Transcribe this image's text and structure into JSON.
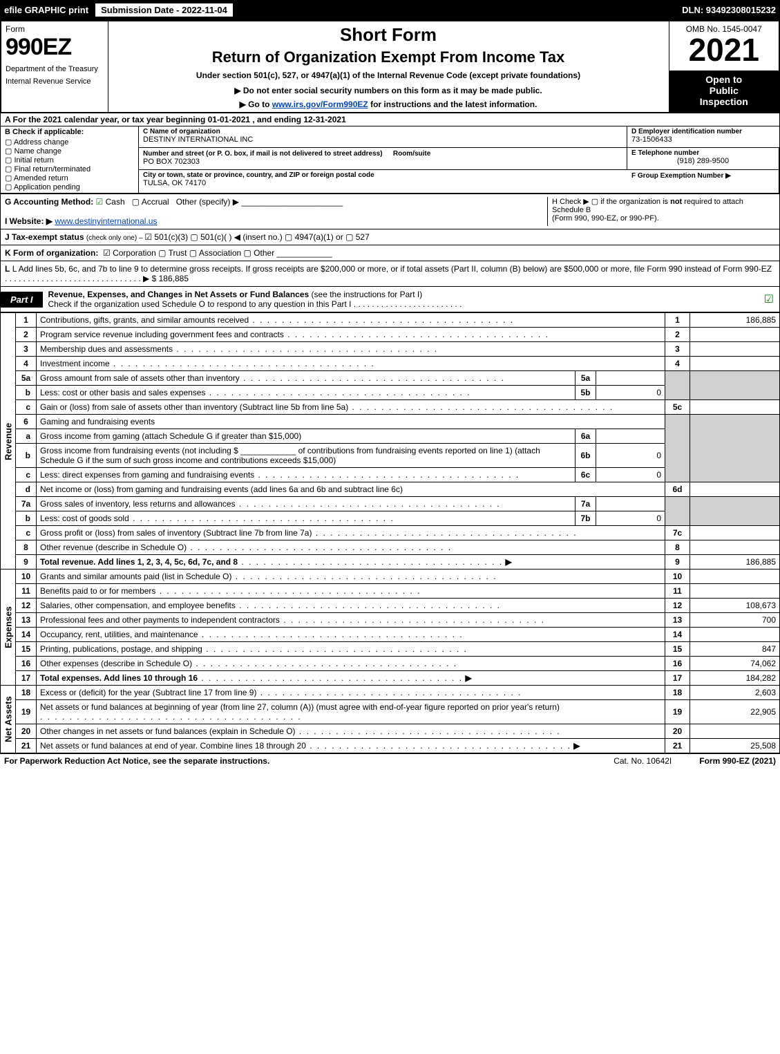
{
  "topbar": {
    "efile": "efile GRAPHIC print",
    "submission_label": "Submission Date - 2022-11-04",
    "dln_label": "DLN: 93492308015232"
  },
  "header": {
    "form_word": "Form",
    "form_number": "990EZ",
    "dept1": "Department of the Treasury",
    "dept2": "Internal Revenue Service",
    "short_form": "Short Form",
    "return_of": "Return of Organization Exempt From Income Tax",
    "under_section": "Under section 501(c), 527, or 4947(a)(1) of the Internal Revenue Code (except private foundations)",
    "do_not": "▶ Do not enter social security numbers on this form as it may be made public.",
    "goto_prefix": "▶ Go to ",
    "goto_link": "www.irs.gov/Form990EZ",
    "goto_suffix": " for instructions and the latest information.",
    "omb": "OMB No. 1545-0047",
    "year": "2021",
    "open_to1": "Open to",
    "open_to2": "Public",
    "open_to3": "Inspection"
  },
  "rowA": "A  For the 2021 calendar year, or tax year beginning 01-01-2021 , and ending 12-31-2021",
  "boxB": {
    "hdr": "B  Check if applicable:",
    "items": [
      {
        "label": "Address change",
        "sel": false
      },
      {
        "label": "Name change",
        "sel": false
      },
      {
        "label": "Initial return",
        "sel": false
      },
      {
        "label": "Final return/terminated",
        "sel": false
      },
      {
        "label": "Amended return",
        "sel": false
      },
      {
        "label": "Application pending",
        "sel": false
      }
    ]
  },
  "boxC": {
    "label": "C Name of organization",
    "name": "DESTINY INTERNATIONAL INC",
    "street_label": "Number and street (or P. O. box, if mail is not delivered to street address)",
    "street": "PO BOX 702303",
    "room_label": "Room/suite",
    "city_label": "City or town, state or province, country, and ZIP or foreign postal code",
    "city": "TULSA, OK  74170"
  },
  "boxD": {
    "label": "D Employer identification number",
    "value": "73-1506433"
  },
  "boxE": {
    "label": "E Telephone number",
    "value": "(918) 289-9500"
  },
  "boxF": {
    "label": "F Group Exemption Number  ▶",
    "value": ""
  },
  "rowG": {
    "label": "G Accounting Method:",
    "cash": "Cash",
    "accrual": "Accrual",
    "other": "Other (specify) ▶",
    "line": "______________________"
  },
  "rowH": {
    "text1": "H  Check ▶  ▢  if the organization is ",
    "not": "not",
    "text2": " required to attach Schedule B",
    "text3": "(Form 990, 990-EZ, or 990-PF)."
  },
  "rowI": {
    "label": "I Website: ▶",
    "value": "www.destinyinternational.us"
  },
  "rowJ": {
    "label": "J Tax-exempt status ",
    "small": "(check only one) – ",
    "opts": "☑ 501(c)(3)  ▢ 501(c)(   ) ◀ (insert no.)  ▢ 4947(a)(1) or  ▢ 527"
  },
  "rowK": {
    "label": "K Form of organization:",
    "opts": "☑ Corporation   ▢ Trust   ▢ Association   ▢ Other",
    "blank": "____________"
  },
  "rowL": {
    "text": "L Add lines 5b, 6c, and 7b to line 9 to determine gross receipts. If gross receipts are $200,000 or more, or if total assets (Part II, column (B) below) are $500,000 or more, file Form 990 instead of Form 990-EZ",
    "dots_arrow": " . . . . . . . . . . . . . . . . . . . . . . . . . . . . . . ▶ $ ",
    "value": "186,885"
  },
  "partI": {
    "tag": "Part I",
    "title": "Revenue, Expenses, and Changes in Net Assets or Fund Balances ",
    "sub": "(see the instructions for Part I)",
    "check_line": "Check if the organization used Schedule O to respond to any question in this Part I",
    "checked": "☑"
  },
  "revenue": {
    "vert": "Revenue",
    "lines": [
      {
        "n": "1",
        "d": "Contributions, gifts, grants, and similar amounts received",
        "rn": "1",
        "rv": "186,885"
      },
      {
        "n": "2",
        "d": "Program service revenue including government fees and contracts",
        "rn": "2",
        "rv": ""
      },
      {
        "n": "3",
        "d": "Membership dues and assessments",
        "rn": "3",
        "rv": ""
      },
      {
        "n": "4",
        "d": "Investment income",
        "rn": "4",
        "rv": ""
      }
    ],
    "l5a": {
      "n": "5a",
      "d": "Gross amount from sale of assets other than inventory",
      "mn": "5a",
      "mv": ""
    },
    "l5b": {
      "n": "b",
      "d": "Less: cost or other basis and sales expenses",
      "mn": "5b",
      "mv": "0"
    },
    "l5c": {
      "n": "c",
      "d": "Gain or (loss) from sale of assets other than inventory (Subtract line 5b from line 5a)",
      "rn": "5c",
      "rv": ""
    },
    "l6": {
      "n": "6",
      "d": "Gaming and fundraising events"
    },
    "l6a": {
      "n": "a",
      "d": "Gross income from gaming (attach Schedule G if greater than $15,000)",
      "mn": "6a",
      "mv": ""
    },
    "l6b": {
      "n": "b",
      "d1": "Gross income from fundraising events (not including $",
      "d2": "of contributions from fundraising events reported on line 1) (attach Schedule G if the sum of such gross income and contributions exceeds $15,000)",
      "mn": "6b",
      "mv": "0"
    },
    "l6c": {
      "n": "c",
      "d": "Less: direct expenses from gaming and fundraising events",
      "mn": "6c",
      "mv": "0"
    },
    "l6d": {
      "n": "d",
      "d": "Net income or (loss) from gaming and fundraising events (add lines 6a and 6b and subtract line 6c)",
      "rn": "6d",
      "rv": ""
    },
    "l7a": {
      "n": "7a",
      "d": "Gross sales of inventory, less returns and allowances",
      "mn": "7a",
      "mv": ""
    },
    "l7b": {
      "n": "b",
      "d": "Less: cost of goods sold",
      "mn": "7b",
      "mv": "0"
    },
    "l7c": {
      "n": "c",
      "d": "Gross profit or (loss) from sales of inventory (Subtract line 7b from line 7a)",
      "rn": "7c",
      "rv": ""
    },
    "l8": {
      "n": "8",
      "d": "Other revenue (describe in Schedule O)",
      "rn": "8",
      "rv": ""
    },
    "l9": {
      "n": "9",
      "d": "Total revenue. Add lines 1, 2, 3, 4, 5c, 6d, 7c, and 8",
      "rn": "9",
      "rv": "186,885",
      "bold": true,
      "arrow": true
    }
  },
  "expenses": {
    "vert": "Expenses",
    "lines": [
      {
        "n": "10",
        "d": "Grants and similar amounts paid (list in Schedule O)",
        "rn": "10",
        "rv": ""
      },
      {
        "n": "11",
        "d": "Benefits paid to or for members",
        "rn": "11",
        "rv": ""
      },
      {
        "n": "12",
        "d": "Salaries, other compensation, and employee benefits",
        "rn": "12",
        "rv": "108,673"
      },
      {
        "n": "13",
        "d": "Professional fees and other payments to independent contractors",
        "rn": "13",
        "rv": "700"
      },
      {
        "n": "14",
        "d": "Occupancy, rent, utilities, and maintenance",
        "rn": "14",
        "rv": ""
      },
      {
        "n": "15",
        "d": "Printing, publications, postage, and shipping",
        "rn": "15",
        "rv": "847"
      },
      {
        "n": "16",
        "d": "Other expenses (describe in Schedule O)",
        "rn": "16",
        "rv": "74,062"
      },
      {
        "n": "17",
        "d": "Total expenses. Add lines 10 through 16",
        "rn": "17",
        "rv": "184,282",
        "bold": true,
        "arrow": true
      }
    ]
  },
  "netassets": {
    "vert": "Net Assets",
    "lines": [
      {
        "n": "18",
        "d": "Excess or (deficit) for the year (Subtract line 17 from line 9)",
        "rn": "18",
        "rv": "2,603"
      },
      {
        "n": "19",
        "d": "Net assets or fund balances at beginning of year (from line 27, column (A)) (must agree with end-of-year figure reported on prior year's return)",
        "rn": "19",
        "rv": "22,905"
      },
      {
        "n": "20",
        "d": "Other changes in net assets or fund balances (explain in Schedule O)",
        "rn": "20",
        "rv": ""
      },
      {
        "n": "21",
        "d": "Net assets or fund balances at end of year. Combine lines 18 through 20",
        "rn": "21",
        "rv": "25,508",
        "arrow": true
      }
    ]
  },
  "footer": {
    "left": "For Paperwork Reduction Act Notice, see the separate instructions.",
    "mid": "Cat. No. 10642I",
    "right_prefix": "Form ",
    "right_bold": "990-EZ",
    "right_suffix": " (2021)"
  },
  "colors": {
    "black": "#000000",
    "white": "#ffffff",
    "shade": "#d0d0d0",
    "link": "#0645ad",
    "check_green": "#1a7f1a"
  }
}
